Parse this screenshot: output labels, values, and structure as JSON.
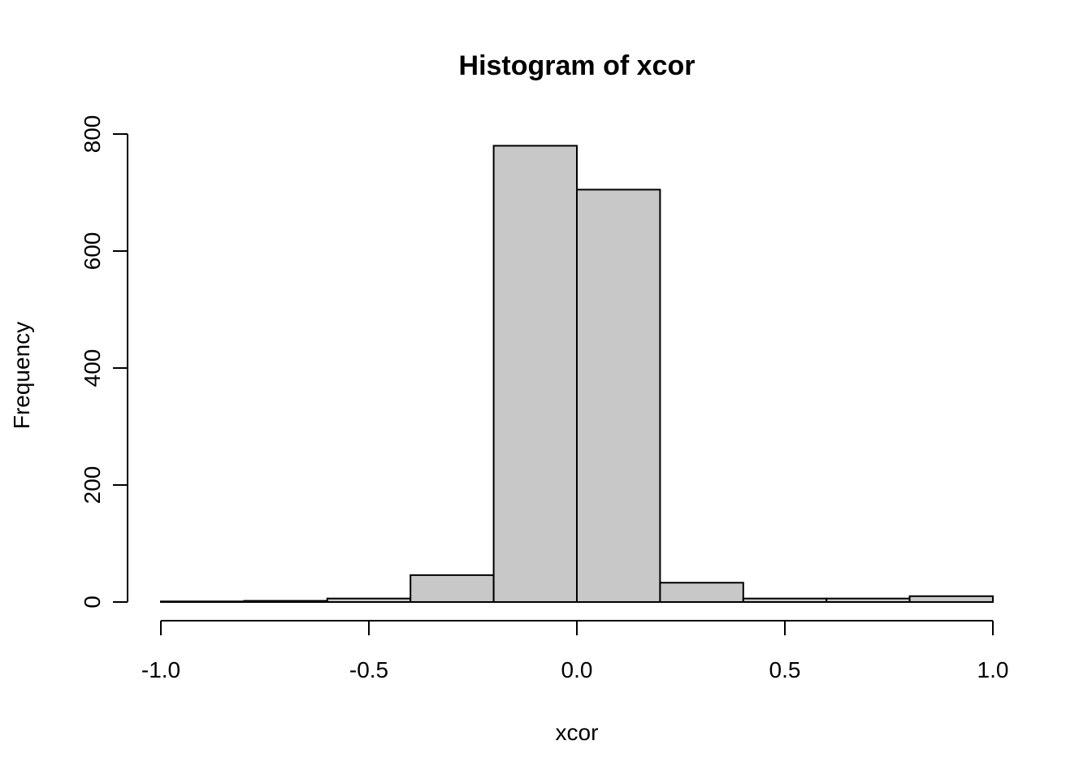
{
  "chart_data": {
    "type": "histogram",
    "title": "Histogram of xcor",
    "xlabel": "xcor",
    "ylabel": "Frequency",
    "xlim": [
      -1.0,
      1.0
    ],
    "ylim": [
      0,
      800
    ],
    "x_ticks": [
      -1.0,
      -0.5,
      0.0,
      0.5,
      1.0
    ],
    "x_tick_labels": [
      "-1.0",
      "-0.5",
      "0.0",
      "0.5",
      "1.0"
    ],
    "y_ticks": [
      0,
      200,
      400,
      600,
      800
    ],
    "y_tick_labels": [
      "0",
      "200",
      "400",
      "600",
      "800"
    ],
    "bins": [
      {
        "start": -1.0,
        "end": -0.8,
        "count": 1
      },
      {
        "start": -0.8,
        "end": -0.6,
        "count": 2
      },
      {
        "start": -0.6,
        "end": -0.4,
        "count": 6
      },
      {
        "start": -0.4,
        "end": -0.2,
        "count": 46
      },
      {
        "start": -0.2,
        "end": 0.0,
        "count": 780
      },
      {
        "start": 0.0,
        "end": 0.2,
        "count": 705
      },
      {
        "start": 0.2,
        "end": 0.4,
        "count": 33
      },
      {
        "start": 0.4,
        "end": 0.6,
        "count": 6
      },
      {
        "start": 0.6,
        "end": 0.8,
        "count": 6
      },
      {
        "start": 0.8,
        "end": 1.0,
        "count": 10
      }
    ],
    "bar_fill": "#c8c8c8",
    "bar_stroke": "#000000",
    "grid": false,
    "legend": "none"
  }
}
